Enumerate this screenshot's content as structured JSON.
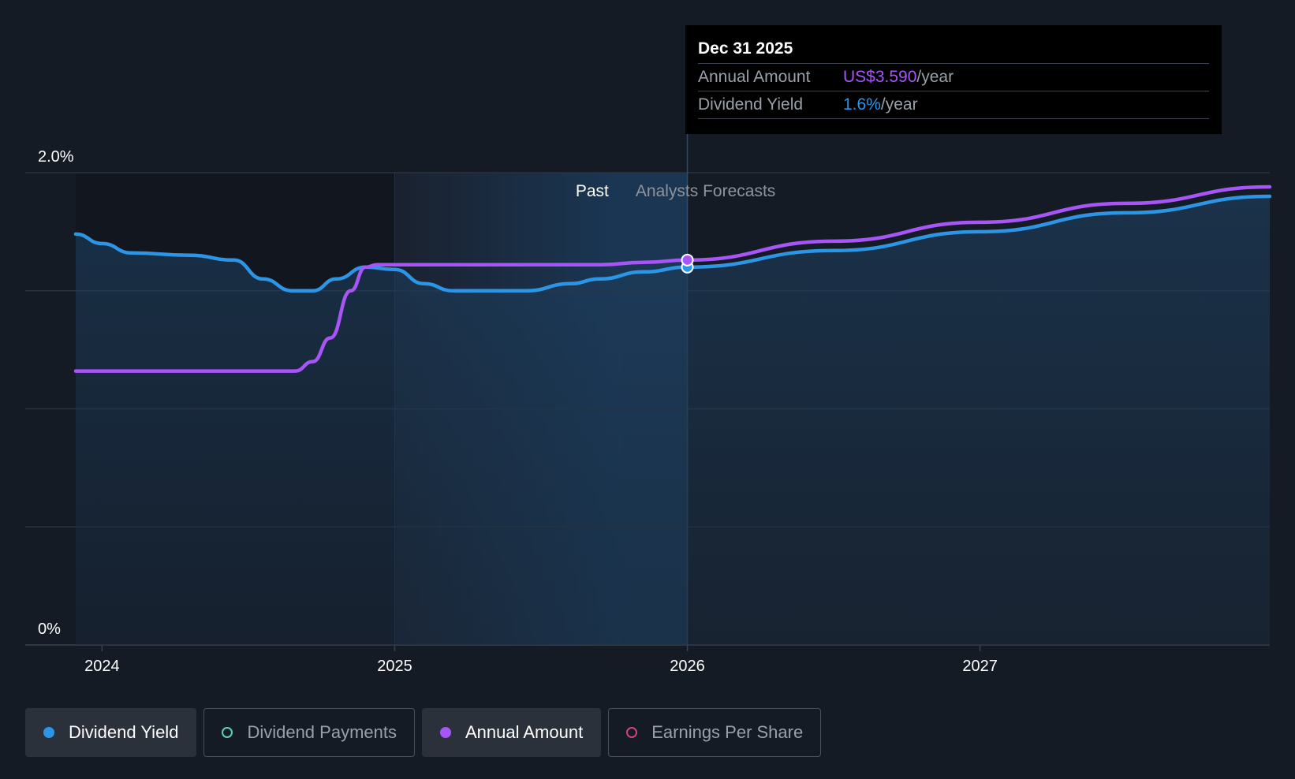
{
  "colors": {
    "background": "#151b24",
    "yield": "#2d95e5",
    "annual": "#a855f7",
    "payments": "#5ecfc0",
    "eps": "#d0437d"
  },
  "tooltip": {
    "date": "Dec 31 2025",
    "rows": [
      {
        "label": "Annual Amount",
        "value": "US$3.590",
        "unit": "/year"
      },
      {
        "label": "Dividend Yield",
        "value": "1.6%",
        "unit": "/year"
      }
    ]
  },
  "legend": [
    {
      "label": "Dividend Yield",
      "icon": "dividend-yield-dot-icon",
      "active": true
    },
    {
      "label": "Dividend Payments",
      "icon": "dividend-payments-dot-icon",
      "active": false
    },
    {
      "label": "Annual Amount",
      "icon": "annual-amount-dot-icon",
      "active": true
    },
    {
      "label": "Earnings Per Share",
      "icon": "earnings-per-share-dot-icon",
      "active": false
    }
  ],
  "chart_data": {
    "type": "line",
    "y_tick_labels": [
      {
        "label": "2.0%",
        "value": 2.0
      },
      {
        "label": "0%",
        "value": 0
      }
    ],
    "ylim": [
      0,
      2.0
    ],
    "xlim": [
      2023.91,
      2027.99
    ],
    "x_ticks": [
      {
        "label": "2024",
        "value": 2024.0
      },
      {
        "label": "2025",
        "value": 2025.0
      },
      {
        "label": "2026",
        "value": 2026.0
      },
      {
        "label": "2027",
        "value": 2027.0
      }
    ],
    "past_label": "Past",
    "forecast_label": "Analysts Forecasts",
    "past_end": 2025.78,
    "forecast_start": 2026.0,
    "marker_x": 2026.0,
    "series": [
      {
        "name": "Dividend Yield",
        "points": [
          [
            2023.91,
            1.74
          ],
          [
            2024.0,
            1.7
          ],
          [
            2024.1,
            1.66
          ],
          [
            2024.3,
            1.65
          ],
          [
            2024.45,
            1.63
          ],
          [
            2024.55,
            1.55
          ],
          [
            2024.65,
            1.5
          ],
          [
            2024.72,
            1.5
          ],
          [
            2024.8,
            1.55
          ],
          [
            2024.9,
            1.6
          ],
          [
            2025.0,
            1.59
          ],
          [
            2025.1,
            1.53
          ],
          [
            2025.2,
            1.5
          ],
          [
            2025.35,
            1.5
          ],
          [
            2025.45,
            1.5
          ],
          [
            2025.6,
            1.53
          ],
          [
            2025.7,
            1.55
          ],
          [
            2025.85,
            1.58
          ],
          [
            2026.0,
            1.6
          ],
          [
            2026.5,
            1.67
          ],
          [
            2027.0,
            1.75
          ],
          [
            2027.5,
            1.83
          ],
          [
            2027.99,
            1.9
          ]
        ]
      },
      {
        "name": "Annual Amount",
        "points": [
          [
            2023.91,
            1.16
          ],
          [
            2024.4,
            1.16
          ],
          [
            2024.66,
            1.16
          ],
          [
            2024.72,
            1.2
          ],
          [
            2024.78,
            1.3
          ],
          [
            2024.85,
            1.5
          ],
          [
            2024.9,
            1.6
          ],
          [
            2024.94,
            1.61
          ],
          [
            2025.2,
            1.61
          ],
          [
            2025.7,
            1.61
          ],
          [
            2025.85,
            1.62
          ],
          [
            2026.0,
            1.63
          ],
          [
            2026.5,
            1.71
          ],
          [
            2027.0,
            1.79
          ],
          [
            2027.5,
            1.87
          ],
          [
            2027.99,
            1.94
          ]
        ]
      }
    ]
  }
}
